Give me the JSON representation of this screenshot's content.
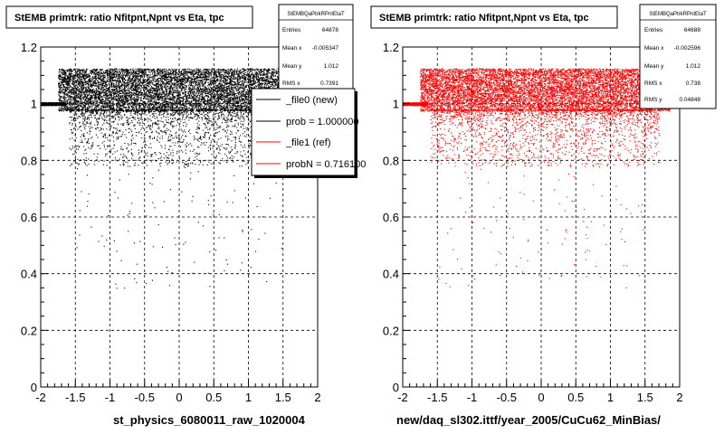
{
  "footer_text": "",
  "chart_data": [
    {
      "type": "scatter",
      "title": "StEMB primtrk: ratio Nfitpnt,Npnt vs Eta, tpc",
      "xlabel": "st_physics_6080011_raw_1020004",
      "ylabel": "",
      "xlim": [
        -2,
        2
      ],
      "ylim": [
        0,
        1.2
      ],
      "x_ticks": [
        "-2",
        "-1.5",
        "-1",
        "-0.5",
        "0",
        "0.5",
        "1",
        "1.5",
        "2"
      ],
      "y_ticks": [
        "0",
        "0.2",
        "0.4",
        "0.6",
        "0.8",
        "1",
        "1.2"
      ],
      "grid": true,
      "marker_color": "#000000",
      "stats": {
        "name": "StEMBQaPtrkRPntEtaT",
        "rows": [
          {
            "label": "Entries",
            "value": "64878"
          },
          {
            "label": "Mean x",
            "value": "-0.005347"
          },
          {
            "label": "Mean y",
            "value": "1.012"
          },
          {
            "label": "RMS x",
            "value": "0.7391"
          }
        ]
      },
      "legend": {
        "placement": "top-right",
        "entries": [
          {
            "text": "_file0 (new)",
            "color": "#000000"
          },
          {
            "text": "prob = 1.000000",
            "color": "#000000"
          },
          {
            "text": "_file1 (ref)",
            "color": "#ff0000"
          },
          {
            "text": "probN = 0.716100",
            "color": "#ff0000"
          }
        ]
      }
    },
    {
      "type": "scatter",
      "title": "StEMB primtrk: ratio Nfitpnt,Npnt vs Eta, tpc",
      "xlabel": "new/daq_sl302.ittf/year_2005/CuCu62_MinBias/",
      "ylabel": "",
      "xlim": [
        -2,
        2
      ],
      "ylim": [
        0,
        1.2
      ],
      "x_ticks": [
        "-2",
        "-1.5",
        "-1",
        "-0.5",
        "0",
        "0.5",
        "1",
        "1.5",
        "2"
      ],
      "y_ticks": [
        "0",
        "0.2",
        "0.4",
        "0.6",
        "0.8",
        "1",
        "1.2"
      ],
      "grid": true,
      "marker_color": "#ff0000",
      "stats": {
        "name": "StEMBQaPtrkRPntEtaT",
        "rows": [
          {
            "label": "Entries",
            "value": "64688"
          },
          {
            "label": "Mean x",
            "value": "-0.002596"
          },
          {
            "label": "Mean y",
            "value": "1.012"
          },
          {
            "label": "RMS x",
            "value": "0.738"
          },
          {
            "label": "RMS y",
            "value": "0.04848"
          }
        ]
      }
    }
  ]
}
